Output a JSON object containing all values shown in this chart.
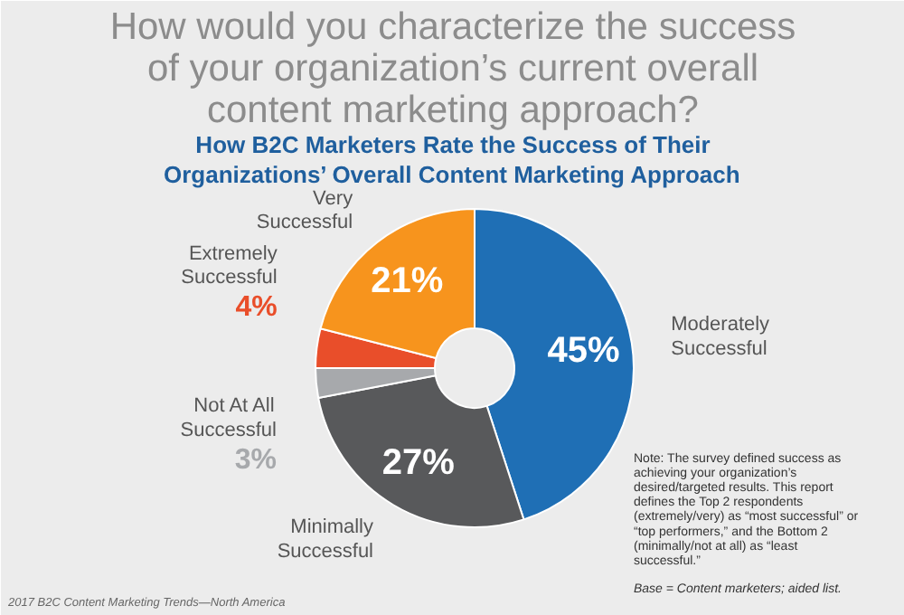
{
  "chart_data": {
    "type": "donut",
    "title": "How would you characterize the success of your organization’s current overall content marketing approach?",
    "subtitle": "How B2C Marketers Rate the Success of Their Organizations’ Overall Content Marketing Approach",
    "categories": [
      "Moderately Successful",
      "Minimally Successful",
      "Not At All Successful",
      "Extremely Successful",
      "Very Successful"
    ],
    "values": [
      45,
      27,
      3,
      4,
      21
    ],
    "value_labels": [
      "45%",
      "27%",
      "3%",
      "4%",
      "21%"
    ],
    "colors": [
      "#1f6fb5",
      "#58595b",
      "#a7a9ac",
      "#e94e2a",
      "#f7941d"
    ],
    "annotations": [
      "Note: The survey defined success as achieving your organization’s desired/targeted results. This report defines the Top 2 respondents (extremely/very) as “most successful” or “top performers,” and the Bottom 2 (minimally/not at all) as “least successful.”",
      "Base = Content marketers; aided list.",
      "2017 B2C Content Marketing Trends—North America"
    ]
  }
}
